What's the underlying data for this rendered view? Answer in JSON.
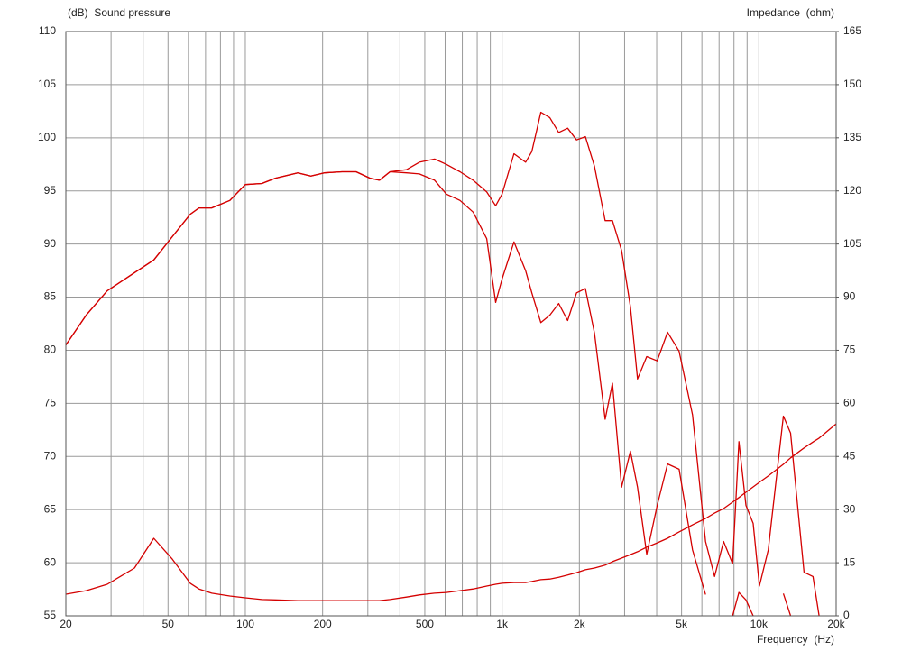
{
  "chart_data": {
    "type": "line",
    "y_label": "(dB)  Sound pressure",
    "y2_label": "Impedance  (ohm)",
    "x_label": "Frequency  (Hz)",
    "xscale": "log",
    "grid": true,
    "xlim": [
      20,
      20000
    ],
    "xticks": [
      20,
      50,
      100,
      200,
      500,
      {
        "value": 1000,
        "label": "1k"
      },
      {
        "value": 2000,
        "label": "2k"
      },
      {
        "value": 5000,
        "label": "5k"
      },
      {
        "value": 10000,
        "label": "10k"
      },
      {
        "value": 20000,
        "label": "20k"
      }
    ],
    "x_grid_minor": [
      30,
      40,
      60,
      70,
      80,
      90,
      300,
      400,
      600,
      700,
      800,
      900,
      3000,
      4000,
      6000,
      7000,
      8000,
      9000
    ],
    "ylim": [
      55,
      110
    ],
    "yticks": [
      55,
      60,
      65,
      70,
      75,
      80,
      85,
      90,
      95,
      100,
      105,
      110
    ],
    "y2lim": [
      0,
      165
    ],
    "y2ticks": [
      0,
      15,
      30,
      45,
      60,
      75,
      90,
      105,
      120,
      135,
      150,
      165
    ],
    "x": [
      20,
      24,
      29,
      37,
      44,
      52,
      61,
      66,
      74,
      87,
      100,
      116,
      131,
      160,
      180,
      203,
      238,
      270,
      306,
      333,
      366,
      424,
      476,
      546,
      607,
      686,
      772,
      871,
      944,
      1000,
      1112,
      1235,
      1306,
      1415,
      1533,
      1661,
      1800,
      1950,
      2110,
      2290,
      2520,
      2690,
      2920,
      3160,
      3370,
      3660,
      4020,
      4410,
      4890,
      5520,
      6200,
      6720,
      7290,
      7900,
      8360,
      8910,
      9500,
      10050,
      10880,
      12460,
      13290,
      14990,
      16240,
      17170,
      20000
    ],
    "series": [
      {
        "color": "#d40000",
        "values": [
          80.5,
          83.3,
          85.6,
          87.3,
          88.5,
          90.7,
          92.8,
          93.4,
          93.4,
          94.1,
          95.6,
          95.7,
          96.2,
          96.7,
          96.4,
          96.7,
          96.8,
          96.8,
          96.2,
          96.0,
          96.8,
          97.0,
          97.7,
          98.0,
          97.5,
          96.8,
          96.0,
          94.9,
          93.6,
          94.7,
          98.5,
          97.7,
          98.7,
          102.4,
          101.9,
          100.5,
          100.9,
          99.8,
          100.1,
          97.3,
          92.2,
          92.2,
          89.4,
          84.1,
          77.3,
          79.4,
          79.0,
          81.7,
          79.9,
          73.9,
          62.0,
          58.7,
          62.0,
          59.9,
          71.4,
          65.4,
          63.7,
          57.8,
          61.2,
          73.8,
          72.2,
          59.1,
          58.7,
          55,
          null
        ]
      },
      {
        "color": "#d40000",
        "values": [
          80.5,
          83.3,
          85.6,
          87.3,
          88.5,
          90.7,
          92.8,
          93.4,
          93.4,
          94.1,
          95.6,
          95.7,
          96.2,
          96.7,
          96.4,
          96.7,
          96.8,
          96.8,
          96.2,
          96.0,
          96.8,
          96.7,
          96.6,
          96.0,
          94.7,
          94.1,
          93.0,
          90.5,
          84.5,
          86.7,
          90.2,
          87.5,
          85.4,
          82.6,
          83.3,
          84.4,
          82.8,
          85.4,
          85.8,
          81.6,
          73.5,
          76.9,
          67.1,
          70.5,
          67.1,
          60.8,
          65.4,
          69.3,
          68.8,
          61.2,
          57.0,
          null,
          null,
          55,
          57.2,
          56.5,
          55,
          null,
          null,
          57.1,
          55,
          null,
          null,
          null,
          null
        ]
      },
      {
        "color": "#d40000",
        "axis": "y2",
        "values": [
          6.1,
          7.1,
          8.9,
          13.5,
          21.9,
          16.0,
          9.2,
          7.6,
          6.4,
          5.6,
          5.1,
          4.6,
          4.5,
          4.3,
          4.3,
          4.3,
          4.3,
          4.3,
          4.3,
          4.3,
          4.6,
          5.3,
          5.9,
          6.4,
          6.6,
          7.1,
          7.6,
          8.4,
          8.9,
          9.2,
          9.4,
          9.4,
          9.7,
          10.2,
          10.4,
          10.9,
          11.5,
          12.2,
          13.0,
          13.5,
          14.3,
          15.3,
          16.3,
          17.3,
          18.1,
          19.4,
          20.6,
          21.9,
          23.7,
          25.7,
          27.5,
          29.0,
          30.3,
          32.1,
          33.4,
          34.9,
          36.4,
          37.7,
          39.5,
          42.8,
          44.6,
          47.4,
          49.1,
          50.2,
          54.2
        ]
      }
    ]
  }
}
